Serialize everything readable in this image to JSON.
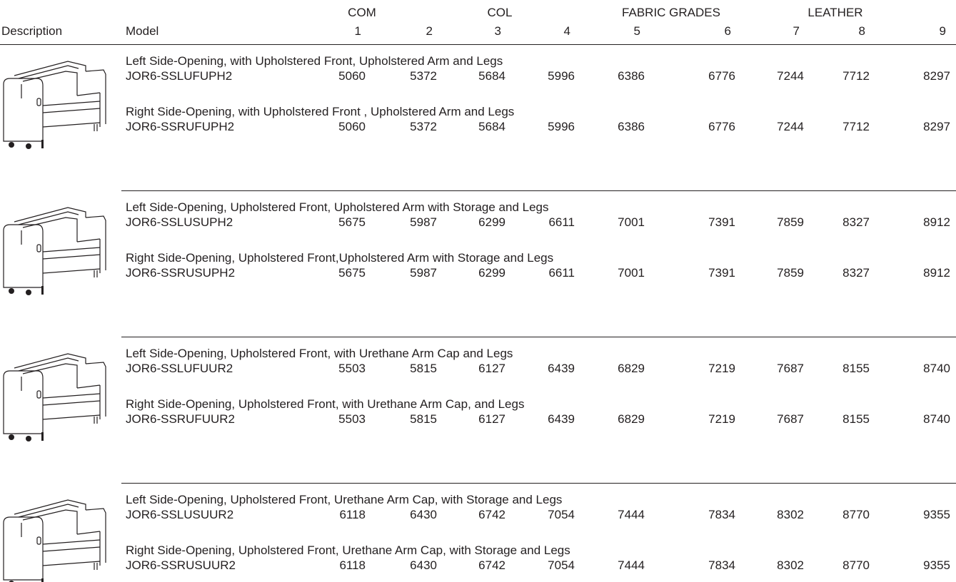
{
  "header": {
    "groups": [
      "COM",
      "COL",
      "FABRIC GRADES",
      "LEATHER"
    ],
    "description": "Description",
    "model": "Model",
    "grades": [
      "1",
      "2",
      "3",
      "4",
      "5",
      "6",
      "7",
      "8",
      "9"
    ]
  },
  "sections": [
    {
      "rows": [
        {
          "description": "Left Side-Opening, with Upholstered Front, Upholstered Arm and Legs",
          "model": "JOR6-SSLUFUPH2",
          "prices": [
            5060,
            5372,
            5684,
            5996,
            6386,
            6776,
            7244,
            7712,
            8297
          ]
        },
        {
          "description": "Right Side-Opening, with Upholstered Front , Upholstered Arm and Legs",
          "model": "JOR6-SSRUFUPH2",
          "prices": [
            5060,
            5372,
            5684,
            5996,
            6386,
            6776,
            7244,
            7712,
            8297
          ]
        }
      ]
    },
    {
      "rows": [
        {
          "description": "Left Side-Opening, Upholstered Front, Upholstered Arm with Storage and Legs",
          "model": "JOR6-SSLUSUPH2",
          "prices": [
            5675,
            5987,
            6299,
            6611,
            7001,
            7391,
            7859,
            8327,
            8912
          ]
        },
        {
          "description": "Right Side-Opening, Upholstered Front,Upholstered Arm with Storage and Legs",
          "model": "JOR6-SSRUSUPH2",
          "prices": [
            5675,
            5987,
            6299,
            6611,
            7001,
            7391,
            7859,
            8327,
            8912
          ]
        }
      ]
    },
    {
      "rows": [
        {
          "description": "Left Side-Opening, Upholstered Front, with Urethane Arm Cap and Legs",
          "model": "JOR6-SSLUFUUR2",
          "prices": [
            5503,
            5815,
            6127,
            6439,
            6829,
            7219,
            7687,
            8155,
            8740
          ]
        },
        {
          "description": "Right Side-Opening, Upholstered Front, with Urethane Arm Cap, and Legs",
          "model": "JOR6-SSRUFUUR2",
          "prices": [
            5503,
            5815,
            6127,
            6439,
            6829,
            7219,
            7687,
            8155,
            8740
          ]
        }
      ]
    },
    {
      "rows": [
        {
          "description": "Left Side-Opening, Upholstered Front, Urethane Arm Cap, with Storage and Legs",
          "model": "JOR6-SSLUSUUR2",
          "prices": [
            6118,
            6430,
            6742,
            7054,
            7444,
            7834,
            8302,
            8770,
            9355
          ]
        },
        {
          "description": "Right Side-Opening, Upholstered Front, Urethane Arm Cap, with Storage and Legs",
          "model": "JOR6-SSRUSUUR2",
          "prices": [
            6118,
            6430,
            6742,
            7054,
            7444,
            7834,
            8302,
            8770,
            9355
          ]
        }
      ]
    }
  ]
}
